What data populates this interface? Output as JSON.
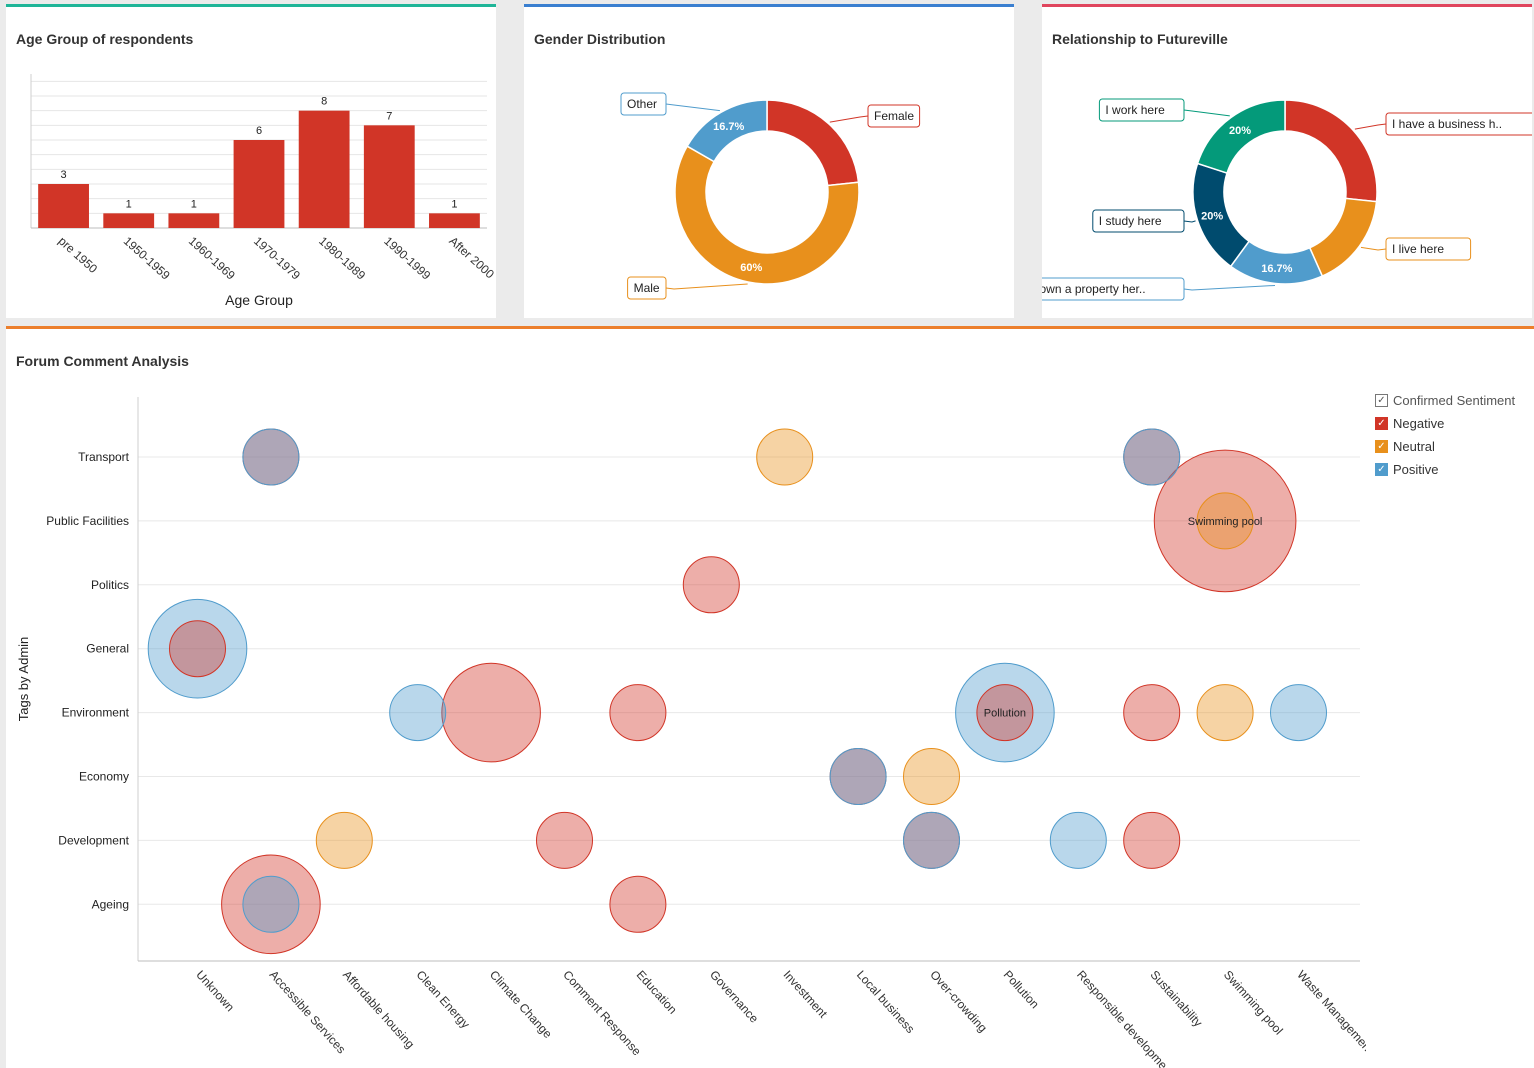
{
  "chart_data": [
    {
      "id": "age",
      "type": "bar",
      "title": "Age Group of respondents",
      "categories": [
        "pre 1950",
        "1950-1959",
        "1960-1969",
        "1970-1979",
        "1980-1989",
        "1990-1999",
        "After 2000"
      ],
      "values": [
        3,
        1,
        1,
        6,
        8,
        7,
        1
      ],
      "xlabel": "Age Group",
      "ylabel": "",
      "ylim": [
        0,
        10.5
      ],
      "grid": true,
      "color": "#d13527"
    },
    {
      "id": "gender",
      "type": "pie",
      "title": "Gender Distribution",
      "slices": [
        {
          "label": "Female",
          "value": 23.3,
          "pct_label": "",
          "color": "#d13527"
        },
        {
          "label": "Male",
          "value": 60,
          "pct_label": "60%",
          "color": "#e8901c"
        },
        {
          "label": "Other",
          "value": 16.7,
          "pct_label": "16.7%",
          "color": "#509ccc"
        }
      ]
    },
    {
      "id": "relationship",
      "type": "pie",
      "title": "Relationship to Futureville",
      "slices": [
        {
          "label": "I have a business h..",
          "value": 26.7,
          "pct_label": "",
          "color": "#d13527"
        },
        {
          "label": "I live here",
          "value": 16.7,
          "pct_label": "",
          "color": "#e8901c"
        },
        {
          "label": "I own a property her..",
          "value": 16.7,
          "pct_label": "16.7%",
          "color": "#509ccc"
        },
        {
          "label": "I study here",
          "value": 20,
          "pct_label": "20%",
          "color": "#004b6e"
        },
        {
          "label": "I work here",
          "value": 20,
          "pct_label": "20%",
          "color": "#049a7a"
        }
      ]
    },
    {
      "id": "forum",
      "type": "scatter",
      "title": "Forum Comment Analysis",
      "xlabel": "",
      "ylabel": "Tags by Admin",
      "x_categories": [
        "Unknown",
        "Accessible Services",
        "Affordable housing",
        "Clean Energy",
        "Climate Change",
        "Comment Response",
        "Education",
        "Governance",
        "Investment",
        "Local business",
        "Over-crowding",
        "Pollution",
        "Responsible developme",
        "Sustainability",
        "Swimming pool",
        "Waste Management"
      ],
      "y_categories": [
        "Ageing",
        "Development",
        "Economy",
        "Environment",
        "General",
        "Politics",
        "Public Facilities",
        "Transport"
      ],
      "legend_title": "Confirmed Sentiment",
      "legend": [
        {
          "name": "Negative",
          "color": "#d13527"
        },
        {
          "name": "Neutral",
          "color": "#e8901c"
        },
        {
          "name": "Positive",
          "color": "#509ccc"
        }
      ],
      "points": [
        {
          "x": "Accessible Services",
          "y": "Transport",
          "sentiment": "Negative",
          "size": 1
        },
        {
          "x": "Accessible Services",
          "y": "Transport",
          "sentiment": "Positive",
          "size": 1
        },
        {
          "x": "Investment",
          "y": "Transport",
          "sentiment": "Neutral",
          "size": 1
        },
        {
          "x": "Sustainability",
          "y": "Transport",
          "sentiment": "Negative",
          "size": 1
        },
        {
          "x": "Sustainability",
          "y": "Transport",
          "sentiment": "Positive",
          "size": 1
        },
        {
          "x": "Swimming pool",
          "y": "Public Facilities",
          "sentiment": "Negative",
          "size": 6.4,
          "label": "Swimming pool"
        },
        {
          "x": "Swimming pool",
          "y": "Public Facilities",
          "sentiment": "Neutral",
          "size": 1
        },
        {
          "x": "Governance",
          "y": "Politics",
          "sentiment": "Negative",
          "size": 1
        },
        {
          "x": "Unknown",
          "y": "General",
          "sentiment": "Positive",
          "size": 3.1
        },
        {
          "x": "Unknown",
          "y": "General",
          "sentiment": "Negative",
          "size": 1
        },
        {
          "x": "Clean Energy",
          "y": "Environment",
          "sentiment": "Positive",
          "size": 1
        },
        {
          "x": "Climate Change",
          "y": "Environment",
          "sentiment": "Negative",
          "size": 3.1
        },
        {
          "x": "Education",
          "y": "Environment",
          "sentiment": "Negative",
          "size": 1
        },
        {
          "x": "Pollution",
          "y": "Environment",
          "sentiment": "Positive",
          "size": 3.1,
          "label": "Pollution"
        },
        {
          "x": "Pollution",
          "y": "Environment",
          "sentiment": "Negative",
          "size": 1
        },
        {
          "x": "Sustainability",
          "y": "Environment",
          "sentiment": "Negative",
          "size": 1
        },
        {
          "x": "Swimming pool",
          "y": "Environment",
          "sentiment": "Neutral",
          "size": 1
        },
        {
          "x": "Waste Management",
          "y": "Environment",
          "sentiment": "Positive",
          "size": 1
        },
        {
          "x": "Local business",
          "y": "Economy",
          "sentiment": "Negative",
          "size": 1
        },
        {
          "x": "Local business",
          "y": "Economy",
          "sentiment": "Positive",
          "size": 1
        },
        {
          "x": "Over-crowding",
          "y": "Economy",
          "sentiment": "Neutral",
          "size": 1
        },
        {
          "x": "Affordable housing",
          "y": "Development",
          "sentiment": "Neutral",
          "size": 1
        },
        {
          "x": "Comment Response",
          "y": "Development",
          "sentiment": "Negative",
          "size": 1
        },
        {
          "x": "Over-crowding",
          "y": "Development",
          "sentiment": "Negative",
          "size": 1
        },
        {
          "x": "Over-crowding",
          "y": "Development",
          "sentiment": "Positive",
          "size": 1
        },
        {
          "x": "Responsible developme",
          "y": "Development",
          "sentiment": "Positive",
          "size": 1
        },
        {
          "x": "Sustainability",
          "y": "Development",
          "sentiment": "Negative",
          "size": 1
        },
        {
          "x": "Accessible Services",
          "y": "Ageing",
          "sentiment": "Negative",
          "size": 3.1
        },
        {
          "x": "Accessible Services",
          "y": "Ageing",
          "sentiment": "Positive",
          "size": 1
        },
        {
          "x": "Education",
          "y": "Ageing",
          "sentiment": "Negative",
          "size": 1
        }
      ]
    }
  ]
}
